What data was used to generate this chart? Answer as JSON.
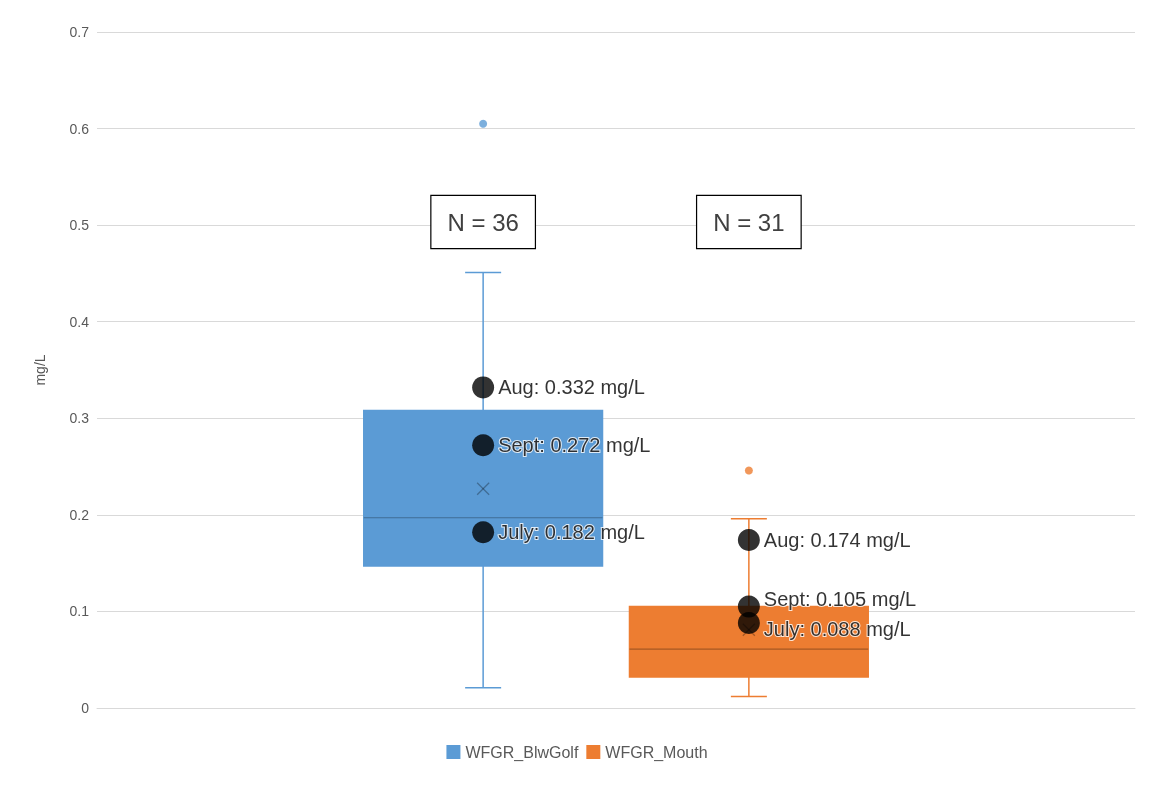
{
  "chart_data": {
    "type": "box",
    "ylabel": "mg/L",
    "categories": [
      null,
      null
    ],
    "ylim": [
      0,
      0.7
    ],
    "yticks": [
      0,
      0.1,
      0.2,
      0.3,
      0.4,
      0.5,
      0.6,
      0.7
    ],
    "grid": "y",
    "legend": "bottom",
    "tick_labels": "y",
    "annotations": [
      "N = 36",
      "N = 31"
    ],
    "series": [
      {
        "name": "WFGR_BlwGolf",
        "color": "#5b9bd5",
        "boxes": [
          {
            "low": 0.021,
            "q1": 0.147,
            "median": 0.197,
            "q3": 0.308,
            "high": 0.451,
            "mean": 0.227,
            "outliers": [
              0.605
            ]
          },
          null
        ]
      },
      {
        "name": "WFGR_Mouth",
        "color": "#ed7d31",
        "boxes": [
          null,
          {
            "low": 0.012,
            "q1": 0.032,
            "median": 0.061,
            "q3": 0.105,
            "high": 0.196,
            "mean": 0.081,
            "outliers": [
              0.246
            ]
          }
        ]
      },
      {
        "type": "scatter",
        "color": "#000000",
        "values": [
          0.332,
          0.174
        ],
        "value_labels": [
          "Aug: 0.332 mg/L",
          "Aug: 0.174 mg/L"
        ]
      },
      {
        "type": "scatter",
        "color": "#000000",
        "values": [
          0.272,
          0.105
        ],
        "value_labels": [
          "Sept: 0.272 mg/L",
          "Sept: 0.105 mg/L"
        ]
      },
      {
        "type": "scatter",
        "color": "#000000",
        "values": [
          0.182,
          0.088
        ],
        "value_labels": [
          "July: 0.182 mg/L",
          "July: 0.088 mg/L"
        ]
      }
    ]
  }
}
